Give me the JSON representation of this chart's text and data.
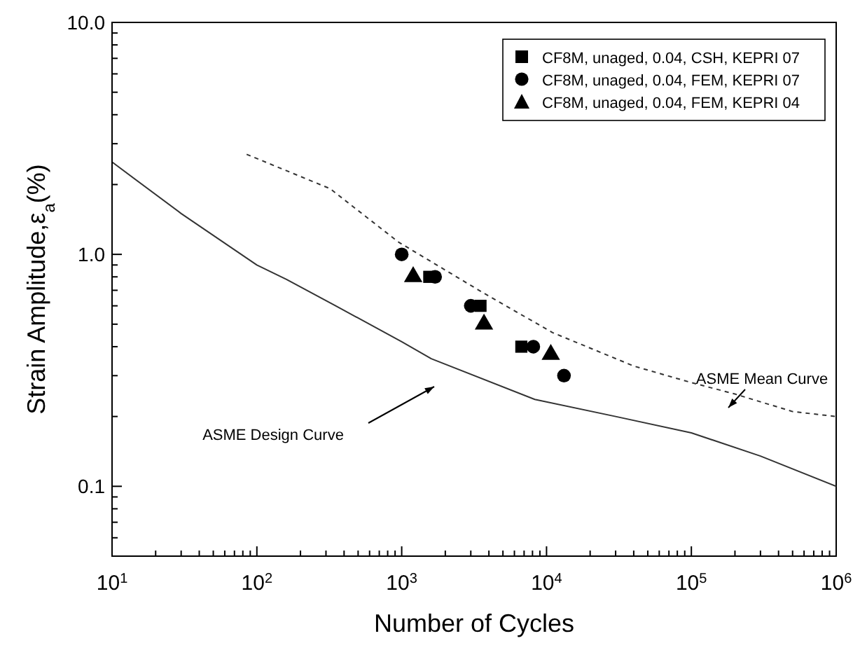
{
  "chart_data": {
    "type": "scatter",
    "xlabel": "Number of Cycles",
    "ylabel": "Strain Amplitude,ε$_{a}$(%)",
    "log": "xy",
    "grid": false,
    "legend": "top right",
    "xlim": [
      10,
      1000000
    ],
    "xticks": [
      {
        "value": 10,
        "label": "10$^{1}$"
      },
      {
        "value": 20,
        "label": null
      },
      {
        "value": 30,
        "label": null
      },
      {
        "value": 40,
        "label": null
      },
      {
        "value": 50,
        "label": null
      },
      {
        "value": 60,
        "label": null
      },
      {
        "value": 70,
        "label": null
      },
      {
        "value": 80,
        "label": null
      },
      {
        "value": 90,
        "label": null
      },
      {
        "value": 100,
        "label": "10$^{2}$"
      },
      {
        "value": 200,
        "label": null
      },
      {
        "value": 300,
        "label": null
      },
      {
        "value": 400,
        "label": null
      },
      {
        "value": 500,
        "label": null
      },
      {
        "value": 600,
        "label": null
      },
      {
        "value": 700,
        "label": null
      },
      {
        "value": 800,
        "label": null
      },
      {
        "value": 900,
        "label": null
      },
      {
        "value": 1000,
        "label": "10$^{3}$"
      },
      {
        "value": 2000,
        "label": null
      },
      {
        "value": 3000,
        "label": null
      },
      {
        "value": 4000,
        "label": null
      },
      {
        "value": 5000,
        "label": null
      },
      {
        "value": 6000,
        "label": null
      },
      {
        "value": 7000,
        "label": null
      },
      {
        "value": 8000,
        "label": null
      },
      {
        "value": 9000,
        "label": null
      },
      {
        "value": 10000,
        "label": "10$^{4}$"
      },
      {
        "value": 20000,
        "label": null
      },
      {
        "value": 30000,
        "label": null
      },
      {
        "value": 40000,
        "label": null
      },
      {
        "value": 50000,
        "label": null
      },
      {
        "value": 60000,
        "label": null
      },
      {
        "value": 70000,
        "label": null
      },
      {
        "value": 80000,
        "label": null
      },
      {
        "value": 90000,
        "label": null
      },
      {
        "value": 100000,
        "label": "10$^{5}$"
      },
      {
        "value": 200000,
        "label": null
      },
      {
        "value": 300000,
        "label": null
      },
      {
        "value": 400000,
        "label": null
      },
      {
        "value": 500000,
        "label": null
      },
      {
        "value": 600000,
        "label": null
      },
      {
        "value": 700000,
        "label": null
      },
      {
        "value": 800000,
        "label": null
      },
      {
        "value": 900000,
        "label": null
      },
      {
        "value": 1000000,
        "label": "10$^{6}$"
      }
    ],
    "ylim": [
      0.05,
      10
    ],
    "yticks": [
      {
        "value": 0.06,
        "label": null
      },
      {
        "value": 0.07,
        "label": null
      },
      {
        "value": 0.08,
        "label": null
      },
      {
        "value": 0.09,
        "label": null
      },
      0.1,
      {
        "value": 0.2,
        "label": null
      },
      {
        "value": 0.3,
        "label": null
      },
      {
        "value": 0.4,
        "label": null
      },
      {
        "value": 0.5,
        "label": null
      },
      {
        "value": 0.6,
        "label": null
      },
      {
        "value": 0.7,
        "label": null
      },
      {
        "value": 0.8,
        "label": null
      },
      {
        "value": 0.9,
        "label": null
      },
      {
        "value": 1,
        "label": "1.0"
      },
      {
        "value": 2,
        "label": null
      },
      {
        "value": 3,
        "label": null
      },
      {
        "value": 4,
        "label": null
      },
      {
        "value": 5,
        "label": null
      },
      {
        "value": 6,
        "label": null
      },
      {
        "value": 7,
        "label": null
      },
      {
        "value": 8,
        "label": null
      },
      {
        "value": 9,
        "label": null
      },
      {
        "value": 10,
        "label": "10.0"
      }
    ],
    "series": [
      {
        "name": "CF8M, unaged, 0.04, CSH, KEPRI 07",
        "marker": "square",
        "color": "#000000",
        "x": [
          1550,
          3500,
          6700
        ],
        "values": [
          0.8,
          0.6,
          0.4
        ]
      },
      {
        "name": "CF8M, unaged, 0.04, FEM, KEPRI 07",
        "marker": "circle",
        "color": "#000000",
        "x": [
          1000,
          1700,
          3000,
          8100,
          13200
        ],
        "values": [
          1.0,
          0.8,
          0.6,
          0.4,
          0.3
        ]
      },
      {
        "name": "CF8M, unaged, 0.04, FEM, KEPRI 04",
        "marker": "triangle",
        "color": "#000000",
        "x": [
          1200,
          3700,
          10700
        ],
        "values": [
          0.8,
          0.5,
          0.37
        ]
      },
      {
        "type": "line",
        "marker": "none",
        "line_style": "solid",
        "color": "#333333",
        "x": [
          10,
          30,
          100,
          160,
          350,
          1000,
          1600,
          8300,
          30000,
          100000,
          300000,
          1000000
        ],
        "values": [
          2.5,
          1.5,
          0.9,
          0.78,
          0.6,
          0.42,
          0.355,
          0.237,
          0.2,
          0.17,
          0.135,
          0.1
        ]
      },
      {
        "type": "line",
        "marker": "none",
        "line_style": "dashed",
        "color": "#333333",
        "x": [
          85,
          320,
          950,
          3550,
          11000,
          40000,
          100000,
          200000,
          500000,
          1000000
        ],
        "values": [
          2.7,
          1.92,
          1.13,
          0.69,
          0.46,
          0.33,
          0.28,
          0.25,
          0.21,
          0.2
        ]
      }
    ],
    "annotations": [
      "ASME Design Curve",
      "ASME Mean Curve"
    ]
  }
}
